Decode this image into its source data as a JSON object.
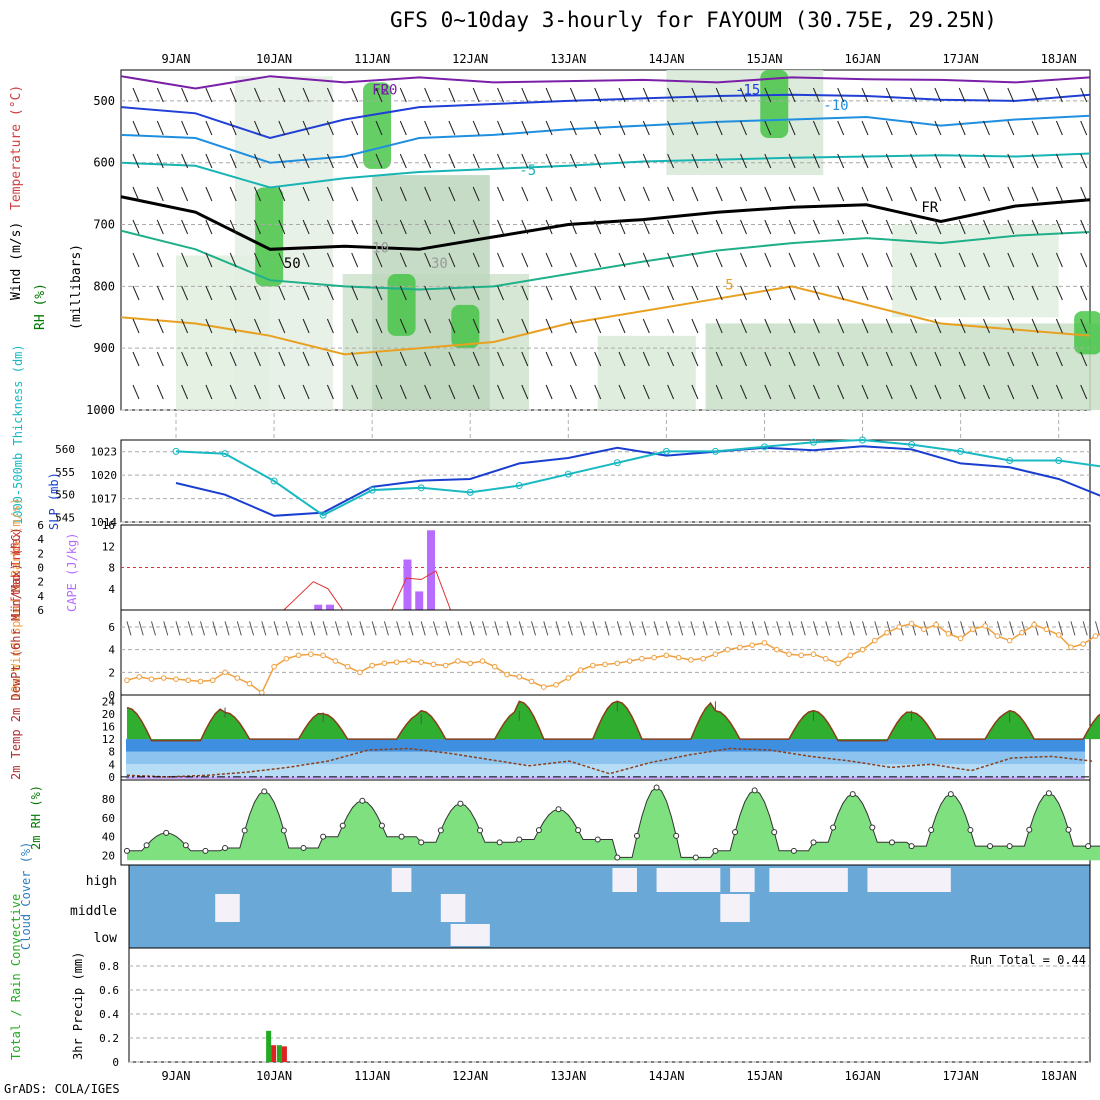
{
  "title": "GFS 0~10day 3-hourly for FAYOUM (30.75E, 29.25N)",
  "footer": "GrADS: COLA/IGES",
  "colors": {
    "rh_green": "#3ec23e",
    "temp_blue": "#1f3fd6",
    "temp_cyan": "#18b4b4",
    "temp_orange": "#e8a020",
    "slp_blue": "#1a3fd0",
    "thick_cyan": "#19b9c2",
    "cape_purple": "#b86bff",
    "li_red": "#e03030",
    "wind_orange": "#f0a040",
    "cloud_blue": "#6aa8d8",
    "precip_green": "#22aa22",
    "precip_red": "#dd2222"
  },
  "chart_data": [
    {
      "type": "contour",
      "name": "upper_air",
      "ylabel_wind": "Wind (m/s)",
      "ylabel_temp": "Temperature (°C)",
      "ylabel_rh": "RH (%)",
      "ylabel_units": "(millibars)",
      "x_ticks": [
        "9JAN",
        "10JAN",
        "11JAN",
        "12JAN",
        "13JAN",
        "14JAN",
        "15JAN",
        "16JAN",
        "17JAN",
        "18JAN"
      ],
      "y_ticks": [
        500,
        600,
        700,
        800,
        900,
        1000
      ],
      "ylim": [
        450,
        1000
      ],
      "contour_labels": [
        "-20",
        "-15",
        "-10",
        "-5",
        "0",
        "5",
        "10",
        "30",
        "50",
        "FR",
        "FR"
      ],
      "isotherms": [
        {
          "label": "-20",
          "color": "#7a1fa8",
          "levels": [
            460,
            480,
            460,
            470,
            462,
            470,
            468,
            466,
            470,
            462,
            465,
            466,
            470,
            462
          ]
        },
        {
          "label": "-15",
          "color": "#1f3fd6",
          "levels": [
            510,
            520,
            560,
            530,
            510,
            505,
            500,
            496,
            492,
            490,
            492,
            498,
            500,
            490
          ]
        },
        {
          "label": "-10",
          "color": "#1f8fe0",
          "levels": [
            555,
            560,
            600,
            590,
            560,
            555,
            546,
            540,
            534,
            530,
            526,
            540,
            530,
            524
          ]
        },
        {
          "label": "-5",
          "color": "#18b4b4",
          "levels": [
            600,
            605,
            640,
            625,
            615,
            610,
            605,
            598,
            595,
            592,
            590,
            588,
            590,
            585
          ]
        },
        {
          "label": "0",
          "color": "#000000",
          "levels": [
            655,
            680,
            740,
            735,
            740,
            720,
            700,
            692,
            680,
            672,
            668,
            695,
            670,
            660
          ]
        },
        {
          "label": "5",
          "color": "#1fb08a",
          "levels": [
            710,
            740,
            790,
            800,
            805,
            800,
            780,
            760,
            742,
            730,
            722,
            730,
            718,
            712
          ]
        },
        {
          "label": "10",
          "color": "#e8a020",
          "levels": [
            850,
            860,
            880,
            910,
            900,
            890,
            860,
            840,
            820,
            800,
            830,
            860,
            870,
            880
          ]
        }
      ],
      "rh_cores": [
        {
          "day": 0.95,
          "p0": 640,
          "p1": 800
        },
        {
          "day": 2.05,
          "p0": 470,
          "p1": 610
        },
        {
          "day": 2.3,
          "p0": 780,
          "p1": 880
        },
        {
          "day": 2.95,
          "p0": 830,
          "p1": 900
        },
        {
          "day": 6.1,
          "p0": 450,
          "p1": 560
        },
        {
          "day": 9.3,
          "p0": 840,
          "p1": 910
        }
      ]
    },
    {
      "type": "line",
      "name": "slp_thickness",
      "ylabel_left": "1000-500mb Thickness (dm)",
      "ylabel_right": "SLP (mb)",
      "left_ticks": [
        545,
        550,
        555,
        560
      ],
      "right_ticks": [
        1014,
        1017,
        1020,
        1023
      ],
      "ylim_thickness": [
        544,
        562
      ],
      "ylim_slp": [
        1014,
        1024.5
      ],
      "x": [
        0.0,
        0.5,
        1.0,
        1.5,
        2.0,
        2.5,
        3.0,
        3.5,
        4.0,
        4.5,
        5.0,
        5.5,
        6.0,
        6.5,
        7.0,
        7.5,
        8.0,
        8.5,
        9.0,
        9.5,
        9.8
      ],
      "series": [
        {
          "name": "SLP",
          "color": "#1a3fd0",
          "values": [
            1019,
            1017.5,
            1014.8,
            1015.2,
            1018.5,
            1019.3,
            1019.5,
            1021.5,
            1022.2,
            1023.5,
            1022.5,
            1023,
            1023.5,
            1023.2,
            1023.7,
            1023.3,
            1021.5,
            1021,
            1019.5,
            1017,
            1016.8
          ]
        },
        {
          "name": "Thickness",
          "color": "#19b9c2",
          "values": [
            559.5,
            559,
            553,
            545.5,
            551,
            551.5,
            550.5,
            552,
            554.5,
            557,
            559.5,
            559.5,
            560.5,
            561.5,
            562,
            561,
            559.5,
            557.5,
            557.5,
            556,
            557
          ]
        }
      ]
    },
    {
      "type": "bar",
      "name": "cape_li",
      "ylabel_left": "Lifted Index",
      "ylabel_right": "CAPE (J/kg)",
      "left_ticks": [
        -6,
        -4,
        -2,
        0,
        2,
        4,
        6
      ],
      "right_ticks": [
        4,
        8,
        12,
        16
      ],
      "ylim_cape": [
        0,
        16
      ],
      "cape_bars": [
        {
          "x": 1.45,
          "value": 1
        },
        {
          "x": 1.57,
          "value": 1
        },
        {
          "x": 2.36,
          "value": 9.5
        },
        {
          "x": 2.48,
          "value": 3.5
        },
        {
          "x": 2.6,
          "value": 15
        }
      ],
      "li_x": [
        0.95,
        1.1,
        1.25,
        1.4,
        1.55,
        1.7,
        2.2,
        2.35,
        2.5,
        2.65,
        2.8,
        3.45,
        3.6
      ],
      "li_vals": [
        6,
        6,
        4,
        2,
        3,
        6,
        6,
        1.5,
        1.7,
        0.5,
        6,
        6,
        6
      ]
    },
    {
      "type": "line",
      "name": "wind10m",
      "ylabel": "10m Wind Speed & Barbs (m/s)",
      "y_ticks": [
        0,
        2,
        4,
        6
      ],
      "ylim": [
        0,
        7.5
      ],
      "x_step_days": 0.125,
      "speed": [
        1.3,
        1.6,
        1.4,
        1.5,
        1.4,
        1.3,
        1.2,
        1.3,
        2.0,
        1.5,
        1.0,
        0.2,
        2.5,
        3.2,
        3.5,
        3.6,
        3.5,
        3.0,
        2.5,
        2.0,
        2.6,
        2.8,
        2.9,
        3.0,
        2.9,
        2.7,
        2.6,
        3.0,
        2.8,
        3.0,
        2.5,
        1.8,
        1.6,
        1.2,
        0.7,
        0.9,
        1.5,
        2.2,
        2.6,
        2.7,
        2.8,
        3.0,
        3.2,
        3.3,
        3.5,
        3.3,
        3.1,
        3.2,
        3.6,
        4.0,
        4.2,
        4.4,
        4.6,
        4.0,
        3.6,
        3.5,
        3.6,
        3.2,
        2.8,
        3.5,
        4.0,
        4.8,
        5.5,
        6.0,
        6.3,
        5.8,
        6.2,
        5.4,
        5.0,
        5.8,
        6.1,
        5.2,
        4.8,
        5.5,
        6.2,
        5.8,
        5.3,
        4.2,
        4.5,
        5.2,
        5.6,
        6.3,
        6.7,
        5.8,
        5.3,
        4.5,
        4.8,
        4.2,
        3.8,
        4.0,
        4.2,
        5.2,
        4.5,
        4.0,
        3.6,
        2.8,
        1.5,
        0.5
      ]
    },
    {
      "type": "area",
      "name": "temp2m",
      "ylabel": "2m Temp 2m DewPt (6hr Min/Max) (°C)",
      "y_ticks": [
        0,
        4,
        8,
        12,
        16,
        20,
        24
      ],
      "ylim": [
        -1,
        26
      ],
      "daily_max": [
        22,
        20.5,
        20,
        21,
        24,
        24,
        21,
        21,
        20.5,
        21
      ],
      "daily_min": [
        11.5,
        12,
        12,
        12,
        12,
        12,
        12,
        11.5,
        12,
        12
      ],
      "dewpoint": [
        0.5,
        0,
        0.5,
        1.5,
        3,
        5,
        8.5,
        9,
        7.5,
        5.5,
        3.5,
        5,
        1,
        4.5,
        7,
        9,
        8.5,
        6.5,
        5,
        3,
        4,
        2,
        6,
        6.5,
        5
      ]
    },
    {
      "type": "area",
      "name": "rh2m",
      "ylabel": "2m RH (%)",
      "y_ticks": [
        20,
        40,
        60,
        80
      ],
      "ylim": [
        10,
        100
      ],
      "series": [
        {
          "name": "day_min",
          "values": [
            25,
            28,
            40,
            34,
            37,
            18,
            25,
            34,
            30,
            30
          ]
        },
        {
          "name": "day_max",
          "values": [
            44,
            88,
            78,
            75,
            69,
            92,
            89,
            85,
            85,
            86
          ]
        }
      ]
    },
    {
      "type": "heatmap",
      "name": "cloud_cover",
      "ylabel": "Cloud Cover (%)",
      "levels": [
        "high",
        "middle",
        "low"
      ],
      "blocks": [
        {
          "level": "high",
          "from": 2.2,
          "to": 2.4
        },
        {
          "level": "high",
          "from": 4.45,
          "to": 4.7
        },
        {
          "level": "high",
          "from": 4.9,
          "to": 5.55
        },
        {
          "level": "high",
          "from": 5.65,
          "to": 5.9
        },
        {
          "level": "high",
          "from": 6.05,
          "to": 6.85
        },
        {
          "level": "high",
          "from": 7.05,
          "to": 7.9
        },
        {
          "level": "middle",
          "from": 0.4,
          "to": 0.65
        },
        {
          "level": "middle",
          "from": 2.7,
          "to": 2.95
        },
        {
          "level": "middle",
          "from": 5.55,
          "to": 5.85
        },
        {
          "level": "low",
          "from": 2.8,
          "to": 3.2
        },
        {
          "level": "low",
          "from": 9.8,
          "to": 10.0
        }
      ]
    },
    {
      "type": "bar",
      "name": "precip3h",
      "ylabel": "3hr Precip (mm)",
      "ylabel_legend": "Total / Rain Convective",
      "y_ticks": [
        0,
        0.2,
        0.4,
        0.6,
        0.8
      ],
      "ylim": [
        0,
        0.95
      ],
      "run_total_label": "Run Total = 0.44",
      "bars": [
        {
          "x": 0.97,
          "total": 0.26,
          "rain": 0.26,
          "convective": 0.14
        },
        {
          "x": 1.08,
          "total": 0.14,
          "rain": 0.14,
          "convective": 0.13
        }
      ]
    }
  ]
}
